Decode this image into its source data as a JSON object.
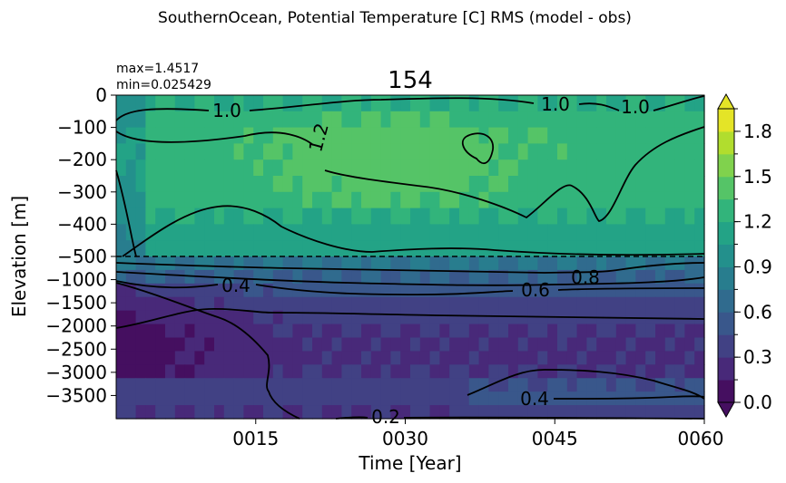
{
  "figure": {
    "suptitle": "SouthernOcean, Potential Temperature [C] RMS (model - obs)"
  },
  "chart_data": {
    "type": "heatmap",
    "title": "154",
    "stats": {
      "max": "max=1.4517",
      "min": "min=0.025429"
    },
    "xlabel": "Time [Year]",
    "ylabel": "Elevation [m]",
    "xlim": [
      1,
      60
    ],
    "x_ticks": [
      {
        "value": 15,
        "label": "0015"
      },
      {
        "value": 30,
        "label": "0030"
      },
      {
        "value": 45,
        "label": "0045"
      },
      {
        "value": 60,
        "label": "0060"
      }
    ],
    "y_ticks_upper": [
      "0",
      "−100",
      "−200",
      "−300",
      "−400",
      "−500"
    ],
    "y_ticks_lower": [
      "−1000",
      "−1500",
      "−2000",
      "−2500",
      "−3000",
      "−3500"
    ],
    "upper_depth_range": [
      -500,
      0
    ],
    "lower_depth_range": [
      -4000,
      -500
    ],
    "colorbar": {
      "min": 0.0,
      "max": 1.95,
      "step": 0.15,
      "extend": "both",
      "ticks": [
        "0.0",
        "0.3",
        "0.6",
        "0.9",
        "1.2",
        "1.5",
        "1.8"
      ]
    },
    "contour_labels": [
      "1.0",
      "1.0",
      "1.0",
      "1.2",
      "0.8",
      "0.6",
      "0.4",
      "0.4",
      "0.2"
    ],
    "rms_field_profile": {
      "note_values": "approximate depth profile of RMS, top to bottom",
      "upper_rows": [
        1.2,
        1.25,
        1.3,
        1.3,
        1.3,
        1.28,
        1.25,
        1.2,
        1.15,
        1.1
      ],
      "lower_rows": [
        0.75,
        0.6,
        0.5,
        0.42,
        0.35,
        0.3,
        0.28,
        0.28,
        0.3,
        0.34,
        0.36,
        0.3
      ]
    }
  }
}
